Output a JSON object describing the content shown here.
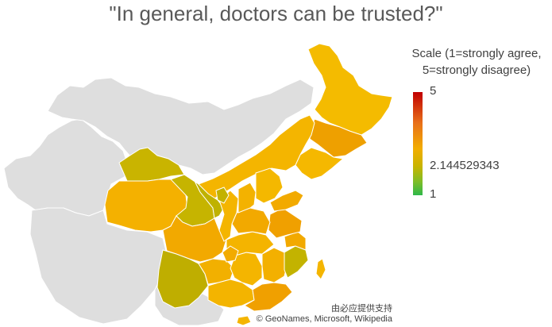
{
  "title": "\"In general, doctors can be trusted?\"",
  "legend": {
    "title_line1": "Scale (1=strongly agree,",
    "title_line2": "5=strongly disagree)",
    "max_label": "5",
    "mid_label": "2.144529343",
    "min_label": "1",
    "max": 5,
    "mid": 2.144529343,
    "min": 1,
    "colors": {
      "max": "#c00000",
      "high": "#e8701a",
      "mid": "#f2ad00",
      "olive": "#c8b400",
      "low": "#2eb84a"
    }
  },
  "attribution": {
    "line1": "由必应提供支持",
    "line2": "© GeoNames, Microsoft, Wikipedia"
  },
  "map": {
    "other_country_color": "#dedede",
    "border_color": "#ffffff"
  }
}
